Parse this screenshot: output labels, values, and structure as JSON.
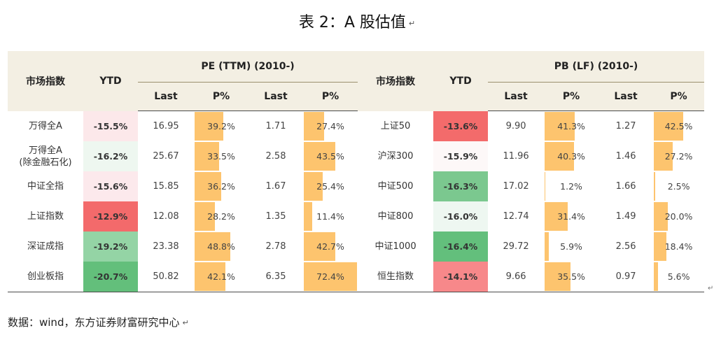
{
  "title": "表 2：A 股估值",
  "return_mark": "↵",
  "headers": {
    "index": "市场指数",
    "ytd": "YTD",
    "pe_group": "PE (TTM) (2010-)",
    "pb_group": "PB (LF) (2010-)",
    "last": "Last",
    "pct": "P%"
  },
  "rows": [
    {
      "left_name": "万得全A",
      "left_ytd": "-15.5%",
      "left_ytd_color": "#fce8ea",
      "pe_last": "16.95",
      "pe_pct": "39.2%",
      "pe_pct_value": 39.2,
      "pb_last_left": "1.71",
      "pb_pct_left": "27.4%",
      "pb_pct_left_value": 27.4,
      "right_name": "上证50",
      "right_ytd": "-13.6%",
      "right_ytd_color": "#f36b6b",
      "r_pe_last": "9.90",
      "r_pe_pct": "41.3%",
      "r_pe_pct_value": 41.3,
      "r_pb_last": "1.27",
      "r_pb_pct": "42.5%",
      "r_pb_pct_value": 42.5
    },
    {
      "left_name": "万得全A\n(除金融石化)",
      "left_ytd": "-16.2%",
      "left_ytd_color": "#eef7f0",
      "pe_last": "25.67",
      "pe_pct": "33.5%",
      "pe_pct_value": 33.5,
      "pb_last_left": "2.58",
      "pb_pct_left": "43.5%",
      "pb_pct_left_value": 43.5,
      "right_name": "沪深300",
      "right_ytd": "-15.9%",
      "right_ytd_color": "#fdf8f8",
      "r_pe_last": "11.96",
      "r_pe_pct": "40.3%",
      "r_pe_pct_value": 40.3,
      "r_pb_last": "1.46",
      "r_pb_pct": "27.2%",
      "r_pb_pct_value": 27.2
    },
    {
      "left_name": "中证全指",
      "left_ytd": "-15.6%",
      "left_ytd_color": "#fce9ec",
      "pe_last": "15.85",
      "pe_pct": "36.2%",
      "pe_pct_value": 36.2,
      "pb_last_left": "1.67",
      "pb_pct_left": "25.4%",
      "pb_pct_left_value": 25.4,
      "right_name": "中证500",
      "right_ytd": "-16.3%",
      "right_ytd_color": "#7bc88f",
      "r_pe_last": "17.02",
      "r_pe_pct": "1.2%",
      "r_pe_pct_value": 1.2,
      "r_pb_last": "1.66",
      "r_pb_pct": "2.5%",
      "r_pb_pct_value": 2.5
    },
    {
      "left_name": "上证指数",
      "left_ytd": "-12.9%",
      "left_ytd_color": "#f36a6b",
      "pe_last": "12.08",
      "pe_pct": "28.2%",
      "pe_pct_value": 28.2,
      "pb_last_left": "1.35",
      "pb_pct_left": "11.4%",
      "pb_pct_left_value": 11.4,
      "right_name": "中证800",
      "right_ytd": "-16.0%",
      "right_ytd_color": "#eef7f1",
      "r_pe_last": "12.74",
      "r_pe_pct": "31.4%",
      "r_pe_pct_value": 31.4,
      "r_pb_last": "1.49",
      "r_pb_pct": "20.0%",
      "r_pb_pct_value": 20.0
    },
    {
      "left_name": "深证成指",
      "left_ytd": "-19.2%",
      "left_ytd_color": "#94d4a5",
      "pe_last": "23.38",
      "pe_pct": "48.8%",
      "pe_pct_value": 48.8,
      "pb_last_left": "2.78",
      "pb_pct_left": "42.7%",
      "pb_pct_left_value": 42.7,
      "right_name": "中证1000",
      "right_ytd": "-16.4%",
      "right_ytd_color": "#63bf7c",
      "r_pe_last": "29.72",
      "r_pe_pct": "5.9%",
      "r_pe_pct_value": 5.9,
      "r_pb_last": "2.56",
      "r_pb_pct": "18.4%",
      "r_pb_pct_value": 18.4
    },
    {
      "left_name": "创业板指",
      "left_ytd": "-20.7%",
      "left_ytd_color": "#63bf7b",
      "pe_last": "50.82",
      "pe_pct": "42.1%",
      "pe_pct_value": 42.1,
      "pb_last_left": "6.35",
      "pb_pct_left": "72.4%",
      "pb_pct_left_value": 72.4,
      "right_name": "恒生指数",
      "right_ytd": "-14.1%",
      "right_ytd_color": "#f7888a",
      "r_pe_last": "9.66",
      "r_pe_pct": "35.5%",
      "r_pe_pct_value": 35.5,
      "r_pb_last": "0.97",
      "r_pb_pct": "5.6%",
      "r_pb_pct_value": 5.6
    }
  ],
  "source": "数据：wind，东方证券财富研究中心"
}
